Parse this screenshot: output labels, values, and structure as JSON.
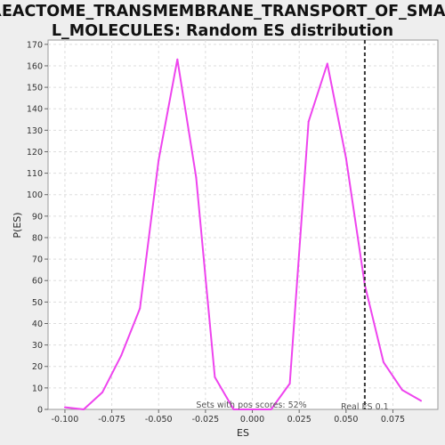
{
  "chart_data": {
    "type": "line",
    "title_lines": [
      "REACTOME_TRANSMEMBRANE_TRANSPORT_OF_SMAL",
      "L_MOLECULES: Random ES distribution"
    ],
    "xlabel": "ES",
    "ylabel": "P(ES)",
    "xlim": [
      -0.109,
      0.099
    ],
    "ylim": [
      0,
      172
    ],
    "x_ticks": [
      -0.1,
      -0.075,
      -0.05,
      -0.025,
      0.0,
      0.025,
      0.05,
      0.075
    ],
    "x_tick_labels": [
      "-0.100",
      "-0.075",
      "-0.050",
      "-0.025",
      "0.000",
      "0.025",
      "0.050",
      "0.075"
    ],
    "y_ticks": [
      0,
      10,
      20,
      30,
      40,
      50,
      60,
      70,
      80,
      90,
      100,
      110,
      120,
      130,
      140,
      150,
      160,
      170
    ],
    "grid": true,
    "series": [
      {
        "color": "#ee44ee",
        "x": [
          -0.1,
          -0.09,
          -0.08,
          -0.07,
          -0.06,
          -0.05,
          -0.04,
          -0.03,
          -0.02,
          -0.01,
          0.0,
          0.01,
          0.02,
          0.03,
          0.04,
          0.05,
          0.06,
          0.07,
          0.08,
          0.09
        ],
        "y": [
          1,
          0,
          8,
          25,
          47,
          116,
          163,
          108,
          15,
          0,
          0,
          0,
          12,
          134,
          161,
          117,
          58,
          22,
          9,
          4
        ]
      }
    ],
    "real_es": 0.06,
    "annotations": {
      "real_es_label": "Real ES 0.1",
      "pos_scores_label": "Sets with pos scores: 52%"
    }
  }
}
